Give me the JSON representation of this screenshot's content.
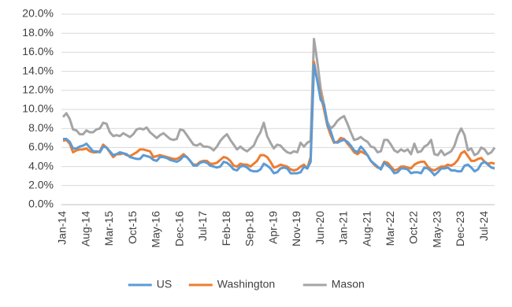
{
  "chart_data": {
    "type": "line",
    "categories": [
      "Jan-14",
      null,
      null,
      null,
      null,
      null,
      null,
      "Aug-14",
      null,
      null,
      null,
      null,
      null,
      null,
      "Mar-15",
      null,
      null,
      null,
      null,
      null,
      null,
      "Oct-15",
      null,
      null,
      null,
      null,
      null,
      null,
      "May-16",
      null,
      null,
      null,
      null,
      null,
      null,
      "Dec-16",
      null,
      null,
      null,
      null,
      null,
      null,
      "Jul-17",
      null,
      null,
      null,
      null,
      null,
      null,
      "Feb-18",
      null,
      null,
      null,
      null,
      null,
      null,
      "Sep-18",
      null,
      null,
      null,
      null,
      null,
      null,
      "Apr-19",
      null,
      null,
      null,
      null,
      null,
      null,
      "Nov-19",
      null,
      null,
      null,
      null,
      null,
      null,
      "Jun-20",
      null,
      null,
      null,
      null,
      null,
      null,
      "Jan-21",
      null,
      null,
      null,
      null,
      null,
      null,
      "Aug-21",
      null,
      null,
      null,
      null,
      null,
      null,
      "Mar-22",
      null,
      null,
      null,
      null,
      null,
      null,
      "Oct-22",
      null,
      null,
      null,
      null,
      null,
      null,
      "May-23",
      null,
      null,
      null,
      null,
      null,
      null,
      "Dec-23",
      null,
      null,
      null,
      null,
      null,
      null,
      "Jul-24",
      null,
      null,
      null
    ],
    "series": [
      {
        "name": "US",
        "color": "#5b9bd5",
        "values": [
          6.9,
          6.9,
          6.6,
          5.9,
          5.9,
          6.1,
          6.2,
          6.4,
          6.0,
          5.6,
          5.6,
          5.5,
          6.1,
          6.0,
          5.6,
          5.2,
          5.3,
          5.5,
          5.4,
          5.3,
          5.0,
          4.9,
          4.8,
          4.8,
          5.2,
          5.1,
          5.0,
          4.7,
          4.6,
          5.0,
          5.0,
          4.9,
          4.7,
          4.6,
          4.5,
          4.7,
          5.1,
          5.0,
          4.6,
          4.1,
          4.1,
          4.4,
          4.5,
          4.4,
          4.1,
          4.0,
          3.9,
          4.0,
          4.5,
          4.4,
          4.1,
          3.7,
          3.6,
          4.0,
          4.1,
          3.9,
          3.6,
          3.5,
          3.5,
          3.7,
          4.3,
          4.1,
          3.8,
          3.3,
          3.4,
          3.8,
          3.9,
          3.8,
          3.3,
          3.3,
          3.3,
          3.4,
          4.0,
          3.8,
          4.5,
          14.7,
          13.0,
          11.0,
          10.5,
          8.4,
          7.7,
          6.6,
          6.5,
          6.7,
          6.8,
          6.6,
          6.2,
          5.7,
          5.5,
          6.1,
          5.7,
          5.2,
          4.6,
          4.3,
          4.0,
          3.7,
          4.4,
          4.1,
          3.8,
          3.3,
          3.4,
          3.8,
          3.8,
          3.7,
          3.3,
          3.4,
          3.4,
          3.3,
          3.9,
          3.8,
          3.5,
          3.1,
          3.4,
          3.8,
          3.8,
          3.9,
          3.6,
          3.6,
          3.5,
          3.5,
          4.1,
          4.2,
          3.9,
          3.5,
          3.7,
          4.3,
          4.5,
          4.2,
          3.9,
          3.8
        ]
      },
      {
        "name": "Washington",
        "color": "#ed7d31",
        "values": [
          6.7,
          6.8,
          6.4,
          5.5,
          5.7,
          5.8,
          5.8,
          5.9,
          5.6,
          5.5,
          5.5,
          5.6,
          6.3,
          6.0,
          5.5,
          5.0,
          5.3,
          5.3,
          5.4,
          5.2,
          5.1,
          5.3,
          5.5,
          5.8,
          5.8,
          5.7,
          5.6,
          5.0,
          5.1,
          5.2,
          5.1,
          5.0,
          4.9,
          4.8,
          4.8,
          5.0,
          5.3,
          5.0,
          4.6,
          4.2,
          4.2,
          4.5,
          4.6,
          4.6,
          4.3,
          4.3,
          4.4,
          4.7,
          5.0,
          4.9,
          4.6,
          4.1,
          4.0,
          4.3,
          4.2,
          4.2,
          4.0,
          4.3,
          4.6,
          5.2,
          5.2,
          5.0,
          4.5,
          3.9,
          4.0,
          4.2,
          4.1,
          4.0,
          3.7,
          3.6,
          3.7,
          4.0,
          4.2,
          3.8,
          5.0,
          15.0,
          13.0,
          11.5,
          10.0,
          8.3,
          7.3,
          6.5,
          6.6,
          7.0,
          6.9,
          6.4,
          6.0,
          5.5,
          5.3,
          5.6,
          5.4,
          5.2,
          4.6,
          4.2,
          3.9,
          3.8,
          4.5,
          4.4,
          4.0,
          3.6,
          3.7,
          4.0,
          4.0,
          3.9,
          3.8,
          4.2,
          4.4,
          4.5,
          4.5,
          4.0,
          3.7,
          3.6,
          3.8,
          4.0,
          4.0,
          4.2,
          4.1,
          4.3,
          4.7,
          5.4,
          5.6,
          5.1,
          4.6,
          4.6,
          4.8,
          4.9,
          4.5,
          4.3,
          4.4,
          4.3
        ]
      },
      {
        "name": "Mason",
        "color": "#a5a5a5",
        "values": [
          9.2,
          9.6,
          9.0,
          7.9,
          7.8,
          7.4,
          7.4,
          7.8,
          7.6,
          7.6,
          7.9,
          8.0,
          8.6,
          8.5,
          7.6,
          7.2,
          7.3,
          7.2,
          7.5,
          7.3,
          7.1,
          7.4,
          7.9,
          8.0,
          7.9,
          8.1,
          7.6,
          7.3,
          7.0,
          7.3,
          7.5,
          7.2,
          6.9,
          6.8,
          6.9,
          7.9,
          7.8,
          7.3,
          6.8,
          6.3,
          6.2,
          6.4,
          6.1,
          6.1,
          6.0,
          5.7,
          6.1,
          6.7,
          7.1,
          7.4,
          6.8,
          6.3,
          5.8,
          6.1,
          5.8,
          5.6,
          5.9,
          6.2,
          7.0,
          7.6,
          8.6,
          7.2,
          6.5,
          5.9,
          6.3,
          6.2,
          5.8,
          5.5,
          5.4,
          5.6,
          5.5,
          6.5,
          6.1,
          6.5,
          6.7,
          17.4,
          15.0,
          12.2,
          10.5,
          8.7,
          8.0,
          8.3,
          8.8,
          9.1,
          9.3,
          8.5,
          7.6,
          6.8,
          6.9,
          7.1,
          6.8,
          6.6,
          6.1,
          6.0,
          5.5,
          5.6,
          6.8,
          6.8,
          6.3,
          5.7,
          5.5,
          5.8,
          5.6,
          5.8,
          5.3,
          6.4,
          5.5,
          5.6,
          6.1,
          6.3,
          6.8,
          5.3,
          5.2,
          5.7,
          5.2,
          5.4,
          5.6,
          6.2,
          7.3,
          8.0,
          7.3,
          5.7,
          5.9,
          5.2,
          5.4,
          6.0,
          5.8,
          5.3,
          5.5,
          6.0
        ]
      }
    ],
    "ylim": [
      0,
      20
    ],
    "yticks": [
      {
        "value": 0,
        "label": "0.0%"
      },
      {
        "value": 2,
        "label": "2.0%"
      },
      {
        "value": 4,
        "label": "4.0%"
      },
      {
        "value": 6,
        "label": "6.0%"
      },
      {
        "value": 8,
        "label": "8.0%"
      },
      {
        "value": 10,
        "label": "10.0%"
      },
      {
        "value": 12,
        "label": "12.0%"
      },
      {
        "value": 14,
        "label": "14.0%"
      },
      {
        "value": 16,
        "label": "16.0%"
      },
      {
        "value": 18,
        "label": "18.0%"
      },
      {
        "value": 20,
        "label": "20.0%"
      }
    ],
    "grid": true,
    "legend": "bottom"
  }
}
